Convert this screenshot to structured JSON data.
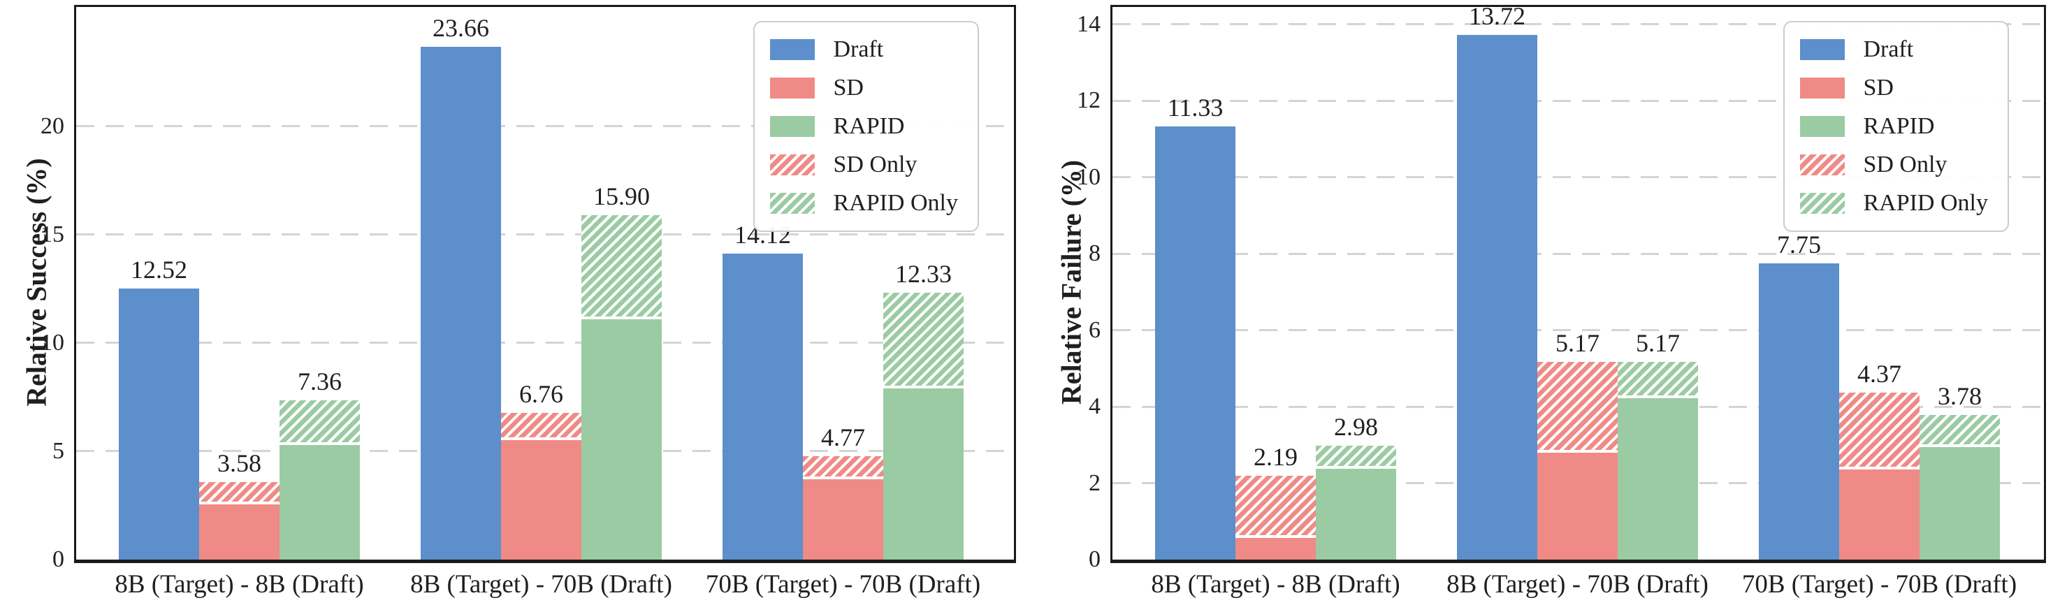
{
  "colors": {
    "draft": "#5C8FCB",
    "sd": "#F08A86",
    "rapid": "#9BCBA3",
    "hatch_stripe": "#ffffff",
    "gridline": "#d4d4d4",
    "spine": "#1a1a1a",
    "text": "#1f1f1f"
  },
  "chart_data": [
    {
      "type": "bar",
      "panel": "left",
      "title": "",
      "xlabel": "",
      "ylabel": "Relative Success (%)",
      "ylim": [
        0,
        25.5
      ],
      "yticks": [
        0,
        5,
        10,
        15,
        20
      ],
      "grid": "horizontal-dashed",
      "legend_position": "upper-right",
      "categories": [
        "8B (Target) - 8B (Draft)",
        "8B (Target) - 70B (Draft)",
        "70B (Target) - 70B (Draft)"
      ],
      "series": [
        {
          "name": "Draft",
          "color": "draft",
          "pattern": "solid",
          "values": [
            12.52,
            23.66,
            14.12
          ],
          "value_labels": [
            "12.52",
            "23.66",
            "14.12"
          ]
        },
        {
          "name": "SD",
          "color": "sd",
          "pattern": "solid-with-hatched-top",
          "values": [
            3.58,
            6.76,
            4.77
          ],
          "solid_values": [
            2.55,
            5.5,
            3.72
          ],
          "hatched_values": [
            1.03,
            1.26,
            1.05
          ],
          "value_labels": [
            "3.58",
            "6.76",
            "4.77"
          ]
        },
        {
          "name": "RAPID",
          "color": "rapid",
          "pattern": "solid-with-hatched-top",
          "values": [
            7.36,
            15.9,
            12.33
          ],
          "solid_values": [
            5.3,
            11.1,
            7.9
          ],
          "hatched_values": [
            2.06,
            4.8,
            4.43
          ],
          "value_labels": [
            "7.36",
            "15.90",
            "12.33"
          ]
        }
      ],
      "legend": [
        {
          "label": "Draft",
          "swatch": "solid",
          "color": "draft"
        },
        {
          "label": "SD",
          "swatch": "solid",
          "color": "sd"
        },
        {
          "label": "RAPID",
          "swatch": "solid",
          "color": "rapid"
        },
        {
          "label": "SD Only",
          "swatch": "hatch",
          "color": "sd"
        },
        {
          "label": "RAPID Only",
          "swatch": "hatch",
          "color": "rapid"
        }
      ]
    },
    {
      "type": "bar",
      "panel": "right",
      "title": "",
      "xlabel": "",
      "ylabel": "Relative Failure (%)",
      "ylim": [
        0,
        14.45
      ],
      "yticks": [
        0,
        2,
        4,
        6,
        8,
        10,
        12,
        14
      ],
      "grid": "horizontal-dashed",
      "legend_position": "upper-right",
      "categories": [
        "8B (Target) - 8B (Draft)",
        "8B (Target) - 70B (Draft)",
        "70B (Target) - 70B (Draft)"
      ],
      "series": [
        {
          "name": "Draft",
          "color": "draft",
          "pattern": "solid",
          "values": [
            11.33,
            13.72,
            7.75
          ],
          "value_labels": [
            "11.33",
            "13.72",
            "7.75"
          ]
        },
        {
          "name": "SD",
          "color": "sd",
          "pattern": "solid-with-hatched-top",
          "values": [
            2.19,
            5.17,
            4.37
          ],
          "solid_values": [
            0.56,
            2.8,
            2.35
          ],
          "hatched_values": [
            1.63,
            2.37,
            2.02
          ],
          "value_labels": [
            "2.19",
            "5.17",
            "4.37"
          ]
        },
        {
          "name": "RAPID",
          "color": "rapid",
          "pattern": "solid-with-hatched-top",
          "values": [
            2.98,
            5.17,
            3.78
          ],
          "solid_values": [
            2.37,
            4.22,
            2.94
          ],
          "hatched_values": [
            0.61,
            0.95,
            0.84
          ],
          "value_labels": [
            "2.98",
            "5.17",
            "3.78"
          ]
        }
      ],
      "legend": [
        {
          "label": "Draft",
          "swatch": "solid",
          "color": "draft"
        },
        {
          "label": "SD",
          "swatch": "solid",
          "color": "sd"
        },
        {
          "label": "RAPID",
          "swatch": "solid",
          "color": "rapid"
        },
        {
          "label": "SD Only",
          "swatch": "hatch",
          "color": "sd"
        },
        {
          "label": "RAPID Only",
          "swatch": "hatch",
          "color": "rapid"
        }
      ]
    }
  ]
}
